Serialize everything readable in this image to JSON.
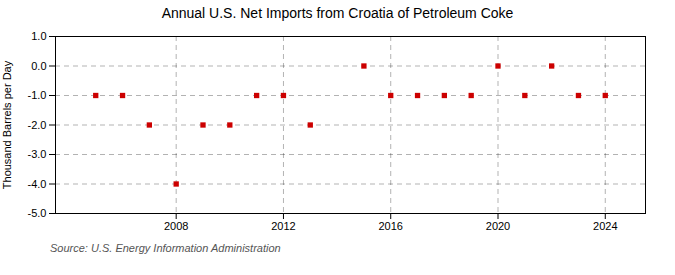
{
  "chart_data": {
    "type": "scatter",
    "title": "Annual U.S. Net Imports from Croatia of Petroleum Coke",
    "ylabel": "Thousand Barrels per Day",
    "source": "Source: U.S. Energy Information Administration",
    "x": [
      2005,
      2006,
      2007,
      2008,
      2009,
      2010,
      2011,
      2012,
      2013,
      2015,
      2016,
      2017,
      2018,
      2019,
      2020,
      2021,
      2022,
      2023,
      2024
    ],
    "values": [
      -1,
      -1,
      -2,
      -4,
      -2,
      -2,
      -1,
      -1,
      -2,
      0,
      -1,
      -1,
      -1,
      -1,
      0,
      -1,
      0,
      -1,
      -1
    ],
    "xlim": [
      2003.5,
      2025.5
    ],
    "xticks": [
      2008,
      2012,
      2016,
      2020,
      2024
    ],
    "ylim": [
      -5.0,
      1.0
    ],
    "yticks": [
      {
        "value": 1.0,
        "label": "1.0"
      },
      {
        "value": 0.0,
        "label": "0.0"
      },
      {
        "value": -1.0,
        "label": "-1.0"
      },
      {
        "value": -2.0,
        "label": "-2.0"
      },
      {
        "value": -3.0,
        "label": "-3.0"
      },
      {
        "value": -4.0,
        "label": "-4.0"
      },
      {
        "value": -5.0,
        "label": "-5.0"
      }
    ],
    "color": "#cc0000",
    "marker": "square",
    "grid": true
  }
}
